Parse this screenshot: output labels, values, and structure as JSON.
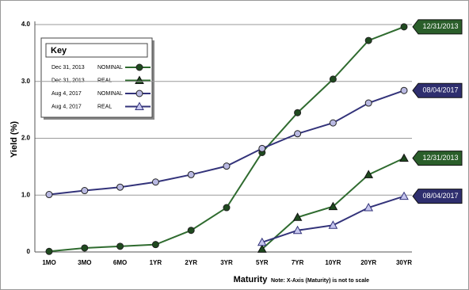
{
  "chart_data": {
    "type": "line",
    "x_label": "Maturity",
    "y_label": "Yield (%)",
    "note": "Note: X-Axis (Maturity) is not to scale",
    "legend_title": "Key",
    "categories": [
      "1MO",
      "3MO",
      "6MO",
      "1YR",
      "2YR",
      "3YR",
      "5YR",
      "7YR",
      "10YR",
      "20YR",
      "30YR"
    ],
    "ylim": [
      0,
      4
    ],
    "yticks": [
      0,
      {
        "value": 1,
        "label": "1.0"
      },
      {
        "value": 2,
        "label": "2.0"
      },
      {
        "value": 3,
        "label": "3.0"
      },
      {
        "value": 4,
        "label": "4.0"
      }
    ],
    "grid": true,
    "series": [
      {
        "name": "Dec 31, 2013",
        "variant": "NOMINAL",
        "marker": "circle",
        "color": "#2f6b2f",
        "marker_fill": "#1f4a1f",
        "end_label": "12/31/2013",
        "values": [
          0.01,
          0.07,
          0.1,
          0.13,
          0.38,
          0.78,
          1.75,
          2.45,
          3.04,
          3.72,
          3.96
        ]
      },
      {
        "name": "Dec 31, 2013",
        "variant": "REAL",
        "marker": "triangle",
        "color": "#2f6b2f",
        "marker_fill": "#1f4a1f",
        "end_label": "12/31/2013",
        "values": [
          null,
          null,
          null,
          null,
          null,
          null,
          0.05,
          0.61,
          0.8,
          1.36,
          1.65
        ]
      },
      {
        "name": "Aug 4, 2017",
        "variant": "NOMINAL",
        "marker": "circle",
        "color": "#33337a",
        "marker_fill": "#b9b9e2",
        "end_label": "08/04/2017",
        "values": [
          1.01,
          1.08,
          1.14,
          1.23,
          1.36,
          1.51,
          1.82,
          2.08,
          2.27,
          2.62,
          2.84
        ]
      },
      {
        "name": "Aug 4, 2017",
        "variant": "REAL",
        "marker": "triangle",
        "color": "#33337a",
        "marker_fill": "#c6c6ee",
        "end_label": "08/04/2017",
        "values": [
          null,
          null,
          null,
          null,
          null,
          null,
          0.17,
          0.38,
          0.47,
          0.78,
          0.98
        ]
      }
    ]
  }
}
